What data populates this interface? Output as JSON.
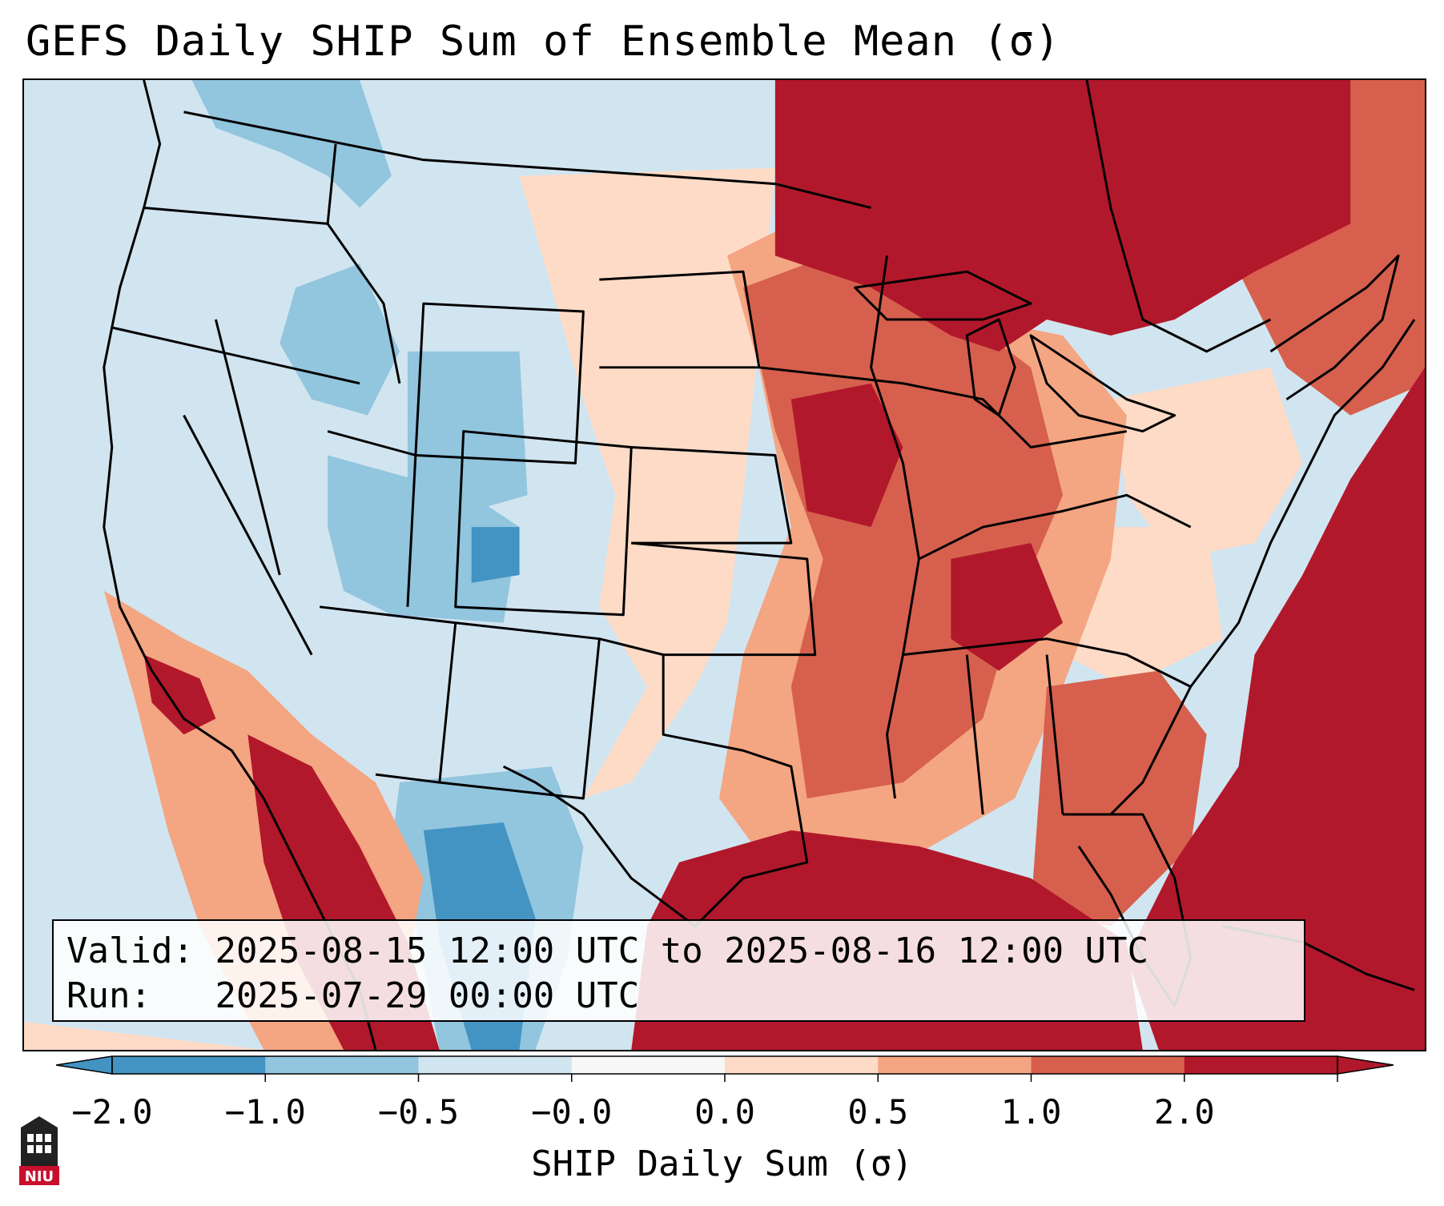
{
  "title": "GEFS Daily SHIP Sum of Ensemble Mean (σ)",
  "info": {
    "valid_label": "Valid:",
    "valid_value": "2025-08-15 12:00 UTC to 2025-08-16 12:00 UTC",
    "run_label": "Run:",
    "run_value": "2025-07-29 00:00 UTC"
  },
  "colorbar": {
    "label": "SHIP Daily Sum (σ)",
    "ticks": [
      "−2.0",
      "−1.0",
      "−0.5",
      "−0.0",
      "0.0",
      "0.5",
      "1.0",
      "2.0"
    ],
    "colors": [
      "#4393c3",
      "#92c5de",
      "#d1e5f0",
      "#f7f7f7",
      "#fddbc7",
      "#f4a582",
      "#d6604d",
      "#b2182b"
    ],
    "extend": "both"
  },
  "logo": {
    "text": "NIU",
    "icon": "university-logo-icon"
  },
  "map_fields": {
    "ocean_west": "#d1e5f0",
    "strong_positive": "#b2182b",
    "positive": "#d6604d",
    "weak_positive": "#f4a582",
    "slight_positive": "#fddbc7",
    "weak_negative": "#d1e5f0",
    "negative": "#92c5de",
    "strong_negative": "#4393c3",
    "neutral": "#f7f7f7"
  }
}
